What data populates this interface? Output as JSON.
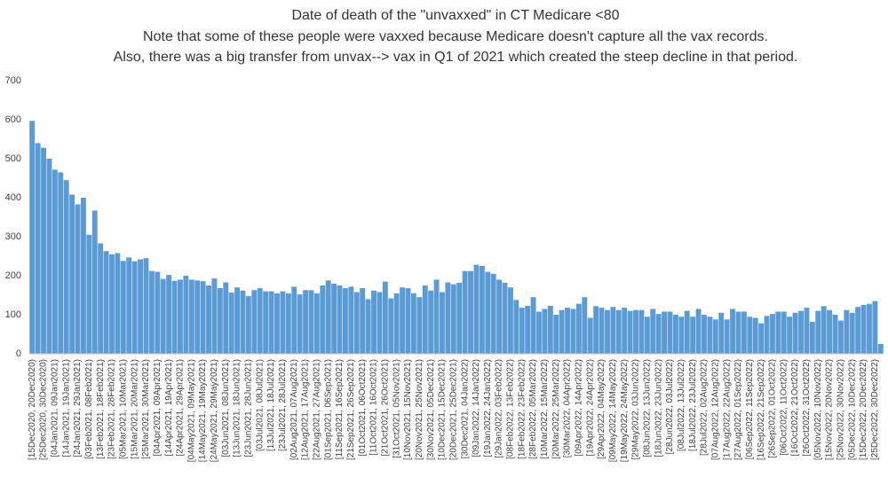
{
  "chart_data": {
    "type": "bar",
    "title": [
      "Date of death of the \"unvaxxed\" in CT Medicare <80",
      "Note that some of these people were vaxxed because Medicare doesn't capture all the vax records.",
      "Also, there was a big transfer from unvax--> vax in Q1 of 2021 which created the steep decline in that period."
    ],
    "color": "#5b9bd5",
    "ylim": [
      0,
      700
    ],
    "yticks": [
      0,
      100,
      200,
      300,
      400,
      500,
      600,
      700
    ],
    "grid": false,
    "categories": [
      "[15Dec2020, 20Dec2020)",
      null,
      "[25Dec2020, 30Dec2020)",
      null,
      "[04Jan2021, 09Jan2021)",
      null,
      "[14Jan2021, 19Jan2021)",
      null,
      "[24Jan2021, 29Jan2021)",
      null,
      "[03Feb2021, 08Feb2021)",
      null,
      "[13Feb2021, 18Feb2021)",
      null,
      "[23Feb2021, 28Feb2021)",
      null,
      "[05Mar2021, 10Mar2021)",
      null,
      "[15Mar2021, 20Mar2021)",
      null,
      "[25Mar2021, 30Mar2021)",
      null,
      "[04Apr2021, 09Apr2021)",
      null,
      "[14Apr2021, 19Apr2021)",
      null,
      "[24Apr2021, 29Apr2021)",
      null,
      "[04May2021, 09May2021)",
      null,
      "[14May2021, 19May2021)",
      null,
      "[24May2021, 29May2021)",
      null,
      "[03Jun2021, 08Jun2021)",
      null,
      "[13Jun2021, 18Jun2021)",
      null,
      "[23Jun2021, 28Jun2021)",
      null,
      "[03Jul2021, 08Jul2021)",
      null,
      "[13Jul2021, 18Jul2021)",
      null,
      "[23Jul2021, 28Jul2021)",
      null,
      "[02Aug2021, 07Aug2021)",
      null,
      "[12Aug2021, 17Aug2021)",
      null,
      "[22Aug2021, 27Aug2021)",
      null,
      "[01Sep2021, 06Sep2021)",
      null,
      "[11Sep2021, 16Sep2021)",
      null,
      "[21Sep2021, 26Sep2021)",
      null,
      "[01Oct2021, 06Oct2021)",
      null,
      "[11Oct2021, 16Oct2021)",
      null,
      "[21Oct2021, 26Oct2021)",
      null,
      "[31Oct2021, 05Nov2021)",
      null,
      "[10Nov2021, 15Nov2021)",
      null,
      "[20Nov2021, 25Nov2021)",
      null,
      "[30Nov2021, 05Dec2021)",
      null,
      "[10Dec2021, 15Dec2021)",
      null,
      "[20Dec2021, 25Dec2021)",
      null,
      "[30Dec2021, 04Jan2022)",
      null,
      "[09Jan2022, 14Jan2022)",
      null,
      "[19Jan2022, 24Jan2022)",
      null,
      "[29Jan2022, 03Feb2022)",
      null,
      "[08Feb2022, 13Feb2022)",
      null,
      "[18Feb2022, 23Feb2022)",
      null,
      "[28Feb2022, 05Mar2022)",
      null,
      "[10Mar2022, 15Mar2022)",
      null,
      "[20Mar2022, 25Mar2022)",
      null,
      "[30Mar2022, 04Apr2022)",
      null,
      "[09Apr2022, 14Apr2022)",
      null,
      "[19Apr2022, 24Apr2022)",
      null,
      "[29Apr2022, 04May2022)",
      null,
      "[09May2022, 14May2022)",
      null,
      "[19May2022, 24May2022)",
      null,
      "[29May2022, 03Jun2022)",
      null,
      "[08Jun2022, 13Jun2022)",
      null,
      "[18Jun2022, 23Jun2022)",
      null,
      "[28Jun2022, 03Jul2022)",
      null,
      "[08Jul2022, 13Jul2022)",
      null,
      "[18Jul2022, 23Jul2022)",
      null,
      "[28Jul2022, 02Aug2022)",
      null,
      "[07Aug2022, 12Aug2022)",
      null,
      "[17Aug2022, 22Aug2022)",
      null,
      "[27Aug2022, 01Sep2022)",
      null,
      "[06Sep2022, 11Sep2022)",
      null,
      "[16Sep2022, 21Sep2022)",
      null,
      "[26Sep2022, 01Oct2022)",
      null,
      "[06Oct2022, 11Oct2022)",
      null,
      "[16Oct2022, 21Oct2022)",
      null,
      "[26Oct2022, 31Oct2022)",
      null,
      "[05Nov2022, 10Nov2022)",
      null,
      "[15Nov2022, 20Nov2022)",
      null,
      "[25Nov2022, 30Nov2022)",
      null,
      "[05Dec2022, 10Dec2022)",
      null,
      "[15Dec2022, 20Dec2022)",
      null,
      "[25Dec2022, 30Dec2022)",
      null
    ],
    "values": [
      597,
      540,
      528,
      500,
      472,
      465,
      445,
      408,
      383,
      400,
      305,
      367,
      283,
      263,
      255,
      258,
      238,
      247,
      237,
      242,
      245,
      212,
      210,
      192,
      202,
      187,
      190,
      200,
      190,
      188,
      186,
      175,
      193,
      168,
      183,
      157,
      170,
      162,
      148,
      163,
      168,
      160,
      160,
      155,
      160,
      155,
      172,
      152,
      163,
      163,
      155,
      175,
      188,
      180,
      175,
      168,
      172,
      158,
      168,
      140,
      162,
      158,
      185,
      142,
      155,
      170,
      168,
      155,
      145,
      175,
      162,
      190,
      158,
      183,
      178,
      182,
      212,
      212,
      228,
      225,
      210,
      205,
      190,
      182,
      170,
      138,
      118,
      123,
      145,
      108,
      115,
      123,
      100,
      112,
      118,
      115,
      128,
      145,
      92,
      122,
      118,
      112,
      120,
      112,
      118,
      110,
      112,
      112,
      95,
      115,
      102,
      108,
      108,
      100,
      95,
      110,
      95,
      115,
      100,
      95,
      88,
      105,
      88,
      115,
      108,
      108,
      95,
      92,
      78,
      97,
      102,
      108,
      108,
      95,
      105,
      110,
      118,
      82,
      110,
      122,
      112,
      100,
      85,
      112,
      105,
      120,
      125,
      128,
      135,
      25
    ]
  }
}
